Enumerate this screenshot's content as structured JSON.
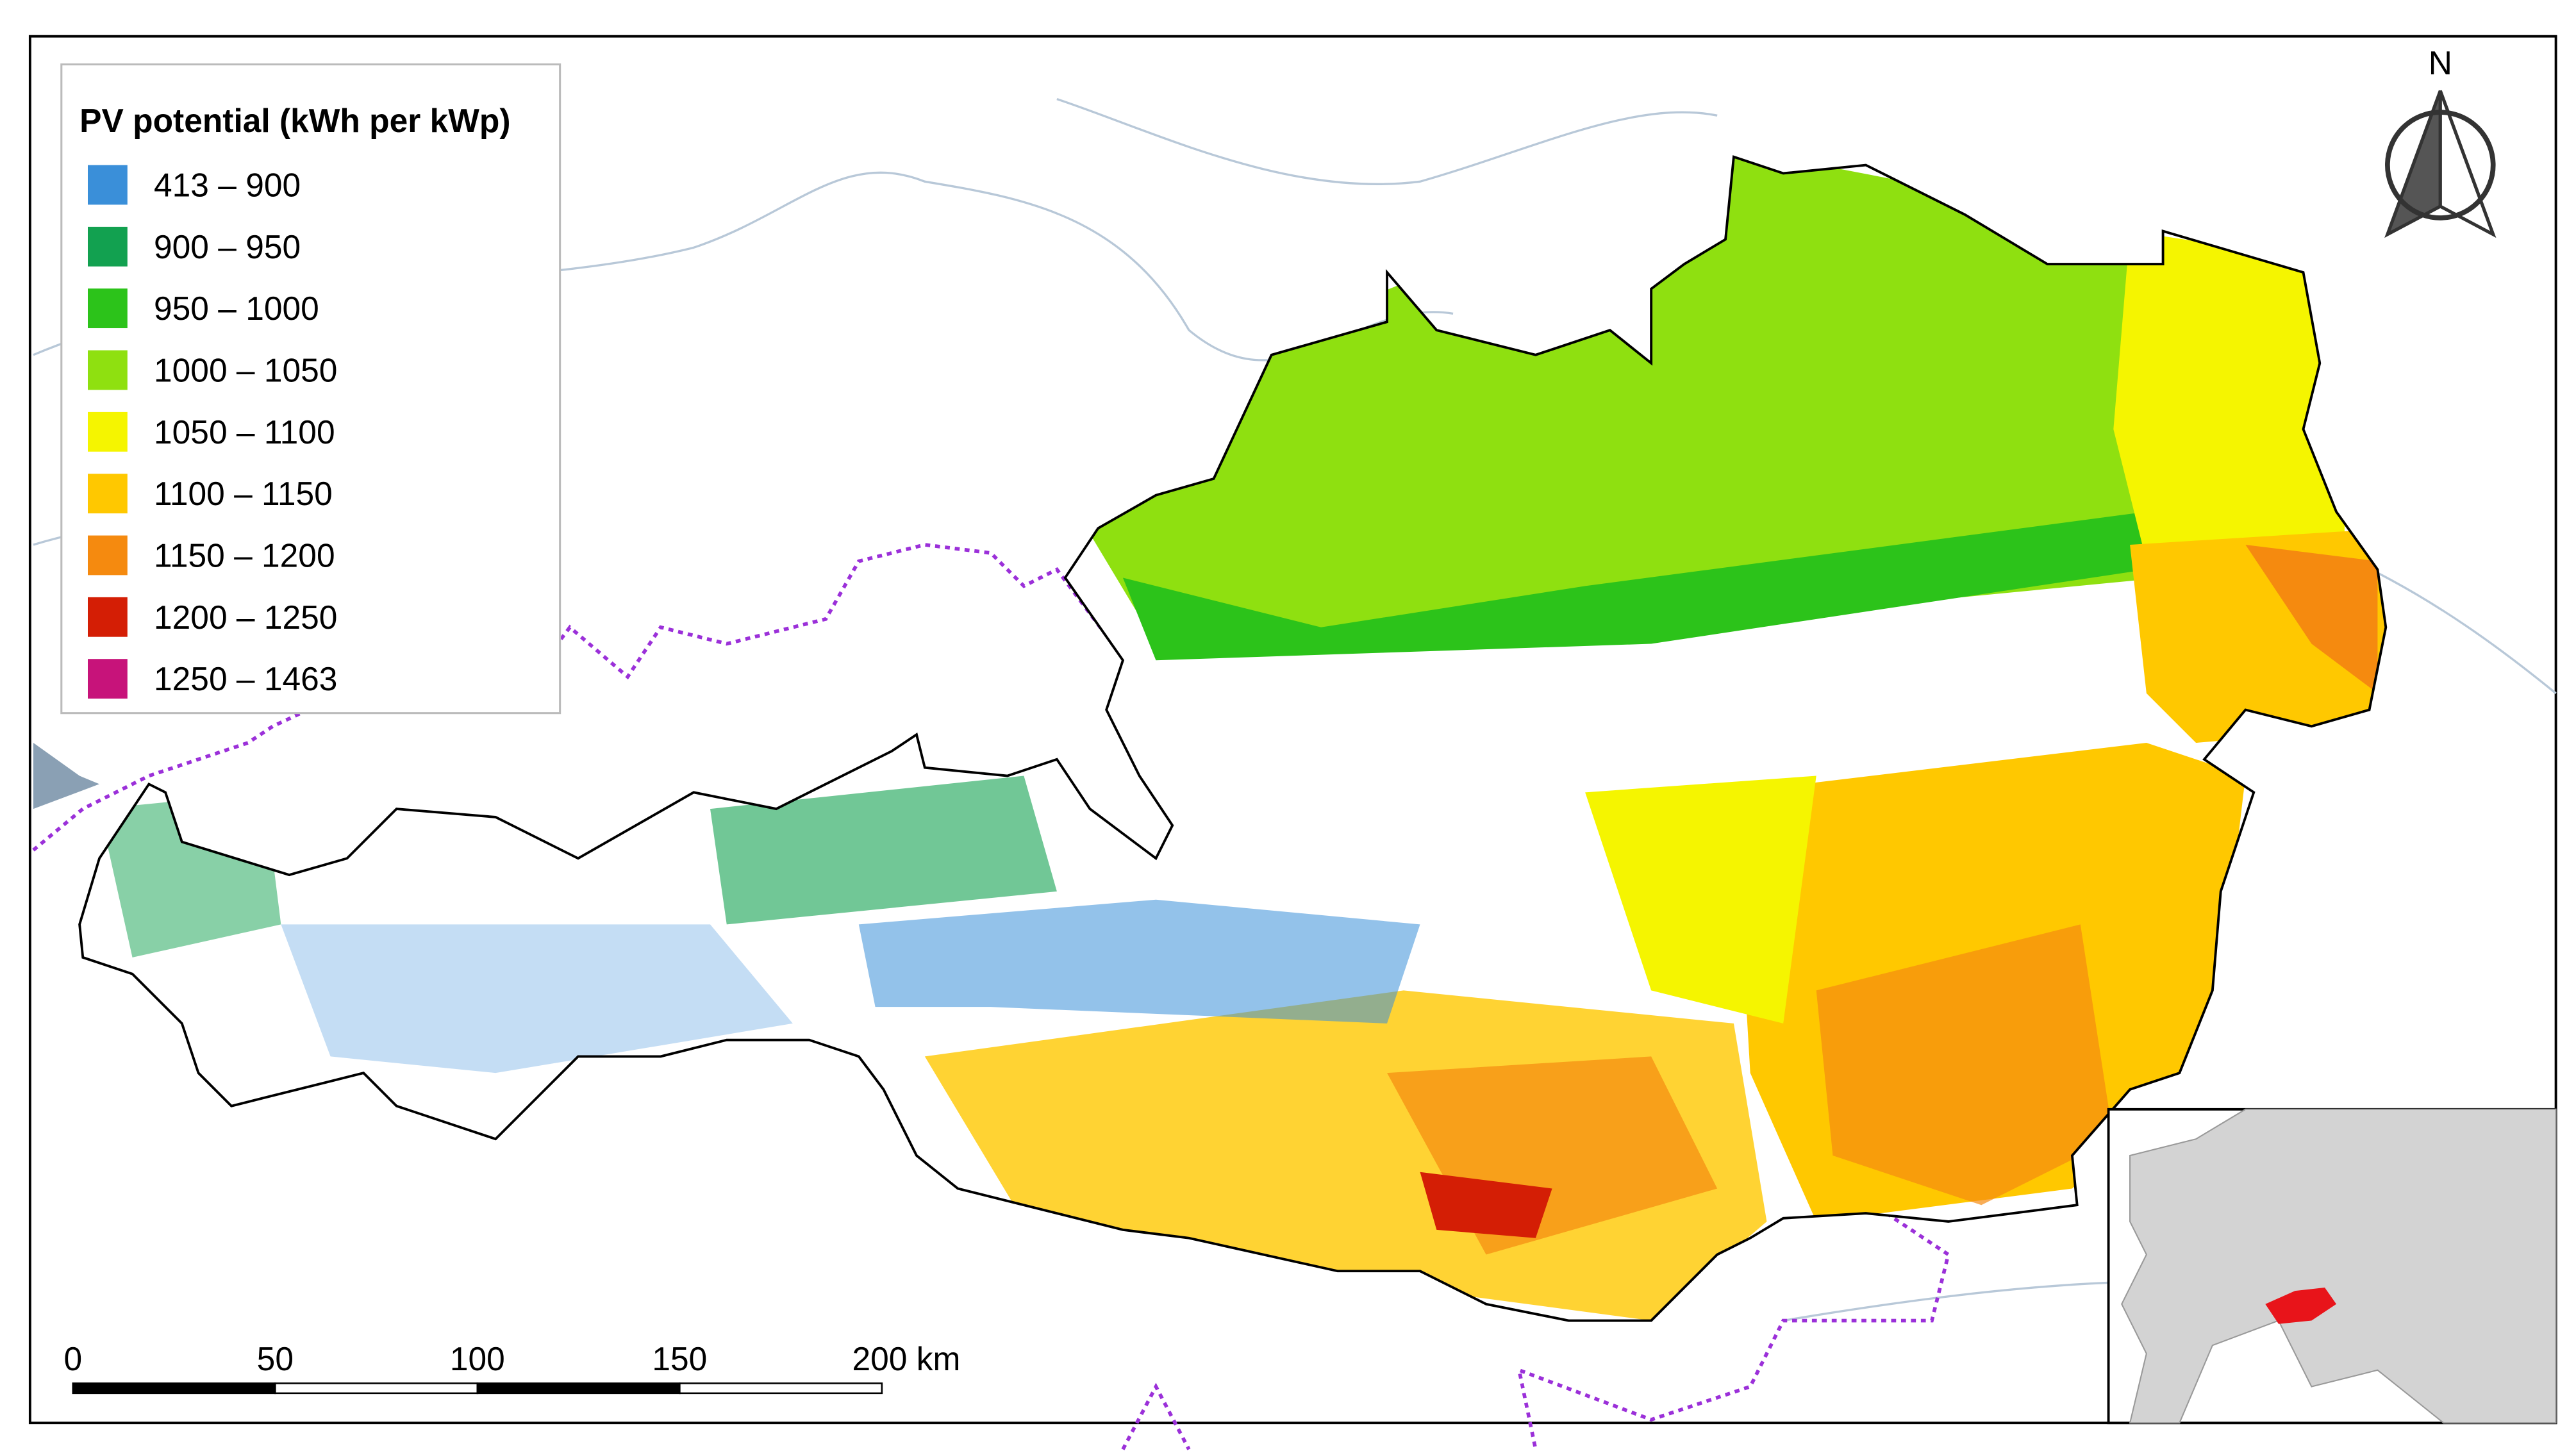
{
  "legend": {
    "title": "PV potential (kWh per kWp)",
    "items": [
      {
        "label": "413 – 900",
        "color": "#3a8fd9"
      },
      {
        "label": "900 – 950",
        "color": "#12a150"
      },
      {
        "label": "950 – 1000",
        "color": "#2cc31a"
      },
      {
        "label": "1000 – 1050",
        "color": "#8fe010"
      },
      {
        "label": "1050 – 1100",
        "color": "#f5f500"
      },
      {
        "label": "1100 – 1150",
        "color": "#ffc800"
      },
      {
        "label": "1150 – 1200",
        "color": "#f58a0f"
      },
      {
        "label": "1200 – 1250",
        "color": "#d41e05"
      },
      {
        "label": "1250 – 1463",
        "color": "#c7137a"
      }
    ]
  },
  "north_arrow": {
    "label": "N"
  },
  "scale_bar": {
    "labels": [
      "0",
      "50",
      "100",
      "150",
      "200 km"
    ]
  }
}
